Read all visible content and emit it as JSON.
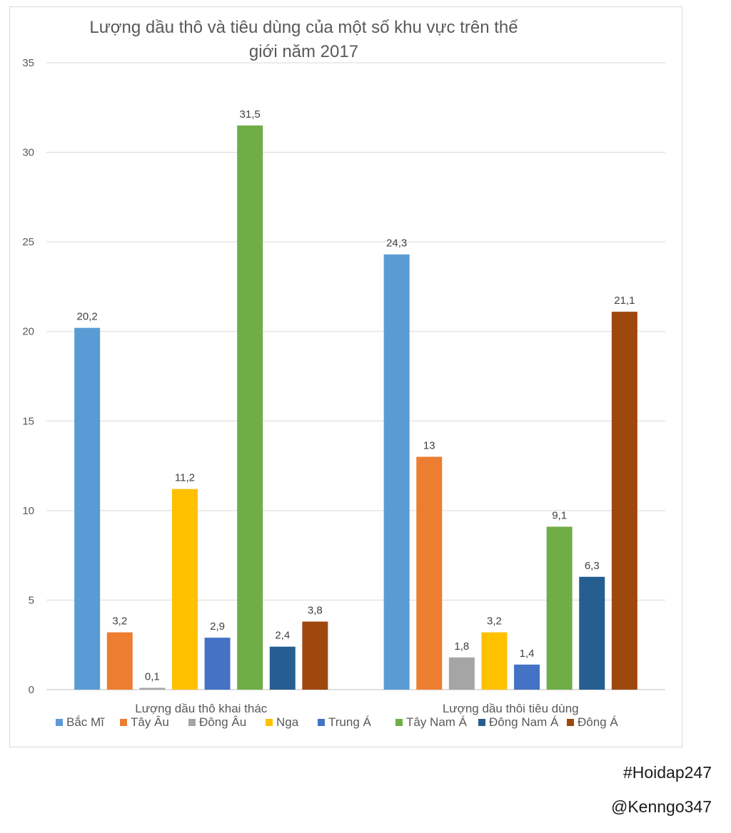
{
  "chart_data": {
    "type": "bar",
    "title_lines": [
      "Lượng dầu thô và tiêu dùng của một số khu vực trên thế",
      "giới năm 2017"
    ],
    "categories": [
      "Lượng dầu thô khai thác",
      "Lượng dầu thôi tiêu dùng"
    ],
    "series": [
      {
        "name": "Bắc Mĩ",
        "color": "#5b9bd5",
        "values": [
          20.2,
          24.3
        ],
        "labels": [
          "20,2",
          "24,3"
        ]
      },
      {
        "name": "Tây Âu",
        "color": "#ed7d31",
        "values": [
          3.2,
          13
        ],
        "labels": [
          "3,2",
          "13"
        ]
      },
      {
        "name": "Đông Âu",
        "color": "#a5a5a5",
        "values": [
          0.1,
          1.8
        ],
        "labels": [
          "0,1",
          "1,8"
        ]
      },
      {
        "name": "Nga",
        "color": "#ffc000",
        "values": [
          11.2,
          3.2
        ],
        "labels": [
          "11,2",
          "3,2"
        ]
      },
      {
        "name": "Trung Á",
        "color": "#4472c4",
        "values": [
          2.9,
          1.4
        ],
        "labels": [
          "2,9",
          "1,4"
        ]
      },
      {
        "name": "Tây Nam Á",
        "color": "#70ad47",
        "values": [
          31.5,
          9.1
        ],
        "labels": [
          "31,5",
          "9,1"
        ]
      },
      {
        "name": "Đông Nam Á",
        "color": "#255e91",
        "values": [
          2.4,
          6.3
        ],
        "labels": [
          "2,4",
          "6,3"
        ]
      },
      {
        "name": "Đông Á",
        "color": "#9e480e",
        "values": [
          3.8,
          21.1
        ],
        "labels": [
          "3,8",
          "21,1"
        ]
      }
    ],
    "ylim": [
      0,
      35
    ],
    "yticks": [
      0,
      5,
      10,
      15,
      20,
      25,
      30,
      35
    ],
    "grid": true,
    "legend_position": "bottom"
  },
  "watermarks": [
    "#Hoidap247",
    "@Kenngo347"
  ]
}
